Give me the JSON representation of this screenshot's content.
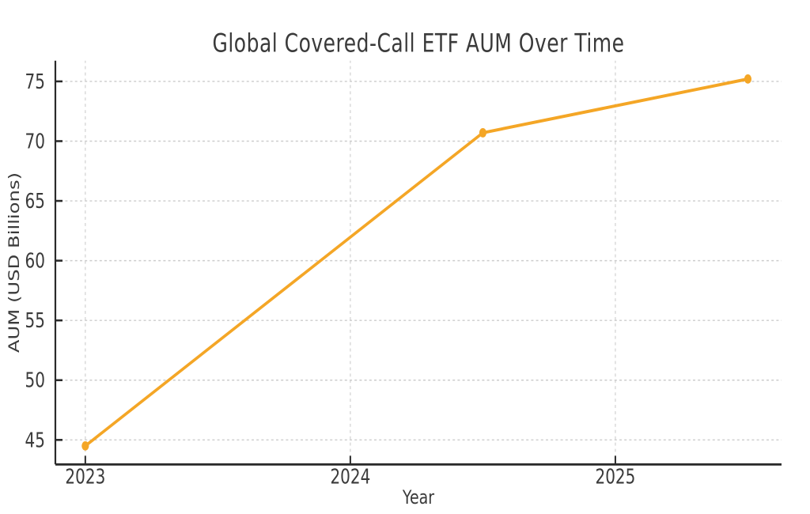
{
  "chart_data": {
    "type": "line",
    "title": "Global Covered-Call ETF AUM Over Time",
    "xlabel": "Year",
    "ylabel": "AUM (USD Billions)",
    "series": [
      {
        "name": "Global Covered-Call ETF AUM",
        "x": [
          2023,
          2024.5,
          2025.5
        ],
        "values": [
          44.5,
          70.7,
          75.2
        ]
      }
    ],
    "x_ticks": {
      "values": [
        2023,
        2024,
        2025
      ],
      "labels": [
        "2023",
        "2024",
        "2025"
      ]
    },
    "y_ticks": {
      "values": [
        45,
        50,
        55,
        60,
        65,
        70,
        75
      ],
      "labels": [
        "45",
        "50",
        "55",
        "60",
        "65",
        "70",
        "75"
      ]
    },
    "xlim": [
      2022.887,
      2025.627
    ],
    "ylim": [
      42.95,
      76.73
    ],
    "grid": true,
    "grid_style": "dashed",
    "legend": "none",
    "marker": "circle",
    "line_color": "#F4A626",
    "grid_color": "#cccccc",
    "axis_color": "#2a2a2a",
    "tick_color": "#2a2a2a",
    "text_color": "#3a3a3a"
  }
}
